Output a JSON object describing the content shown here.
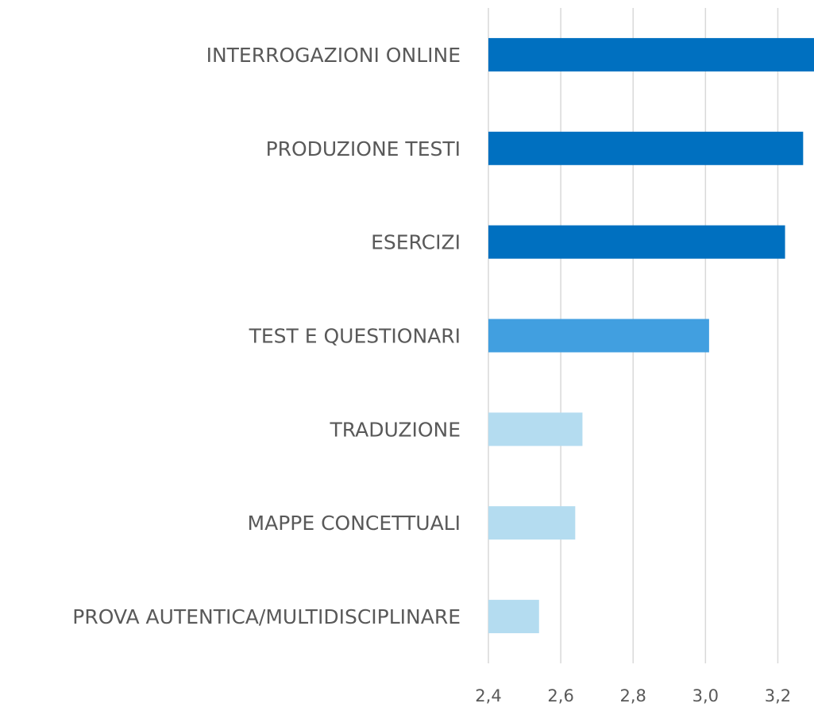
{
  "chart_data": {
    "type": "hbar",
    "categories": [
      "INTERROGAZIONI ONLINE",
      "PRODUZIONE TESTI",
      "ESERCIZI",
      "TEST E QUESTIONARI",
      "TRADUZIONE",
      "MAPPE CONCETTUALI",
      "PROVA AUTENTICA/MULTIDISCIPLINARE"
    ],
    "values": [
      3.3,
      3.27,
      3.22,
      3.01,
      2.66,
      2.64,
      2.54
    ],
    "colors": [
      "#0070c0",
      "#0070c0",
      "#0070c0",
      "#419fe0",
      "#b4dcf0",
      "#b4dcf0",
      "#b4dcf0"
    ],
    "xlim": [
      2.4,
      3.3
    ],
    "xticks": [
      {
        "value": 2.4,
        "label": "2,4"
      },
      {
        "value": 2.6,
        "label": "2,6"
      },
      {
        "value": 2.8,
        "label": "2,8"
      },
      {
        "value": 3.0,
        "label": "3,0"
      },
      {
        "value": 3.2,
        "label": "3,2"
      }
    ],
    "grid": true
  }
}
